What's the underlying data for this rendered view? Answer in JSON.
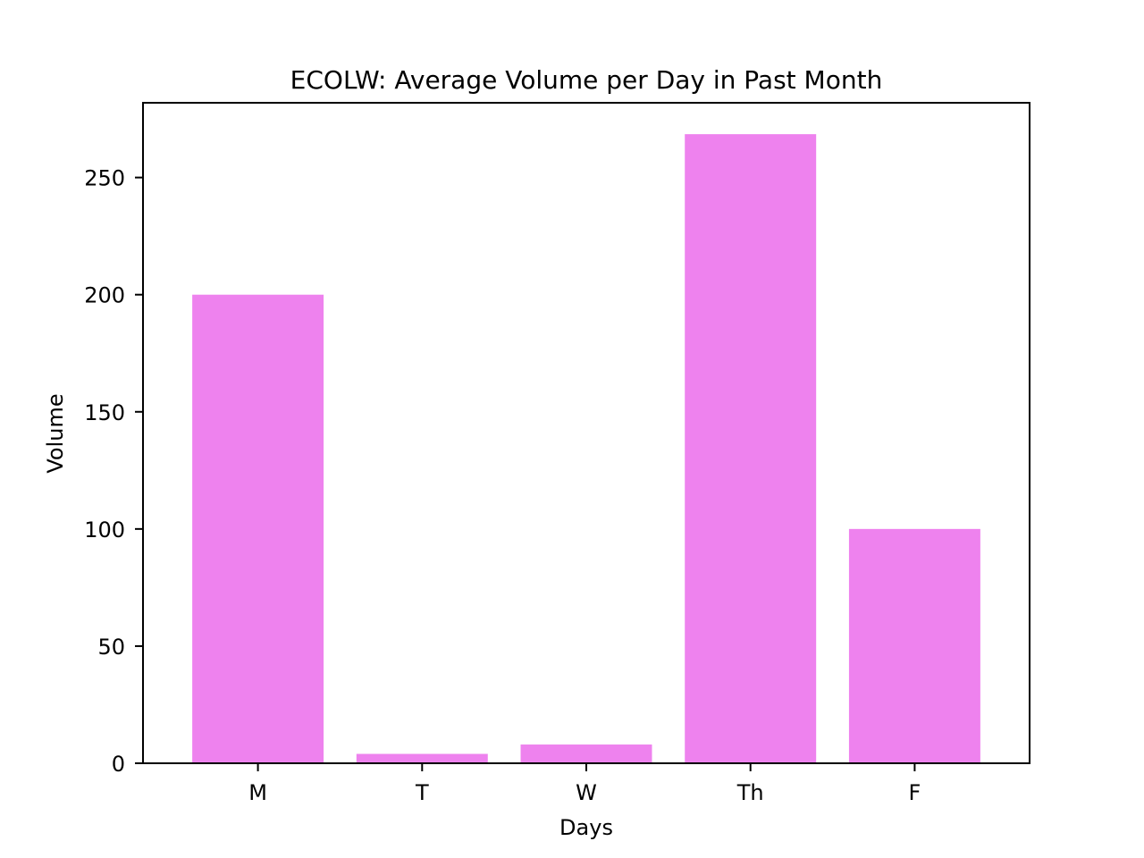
{
  "chart_data": {
    "type": "bar",
    "title": "ECOLW: Average Volume per Day in Past Month",
    "xlabel": "Days",
    "ylabel": "Volume",
    "categories": [
      "M",
      "T",
      "W",
      "Th",
      "F"
    ],
    "values": [
      200,
      4,
      8,
      268.5,
      100
    ],
    "ylim": [
      0,
      281.9
    ],
    "yticks": [
      0,
      50,
      100,
      150,
      200,
      250
    ],
    "grid": false,
    "legend": "none",
    "bar_color": "#ee82ee"
  }
}
